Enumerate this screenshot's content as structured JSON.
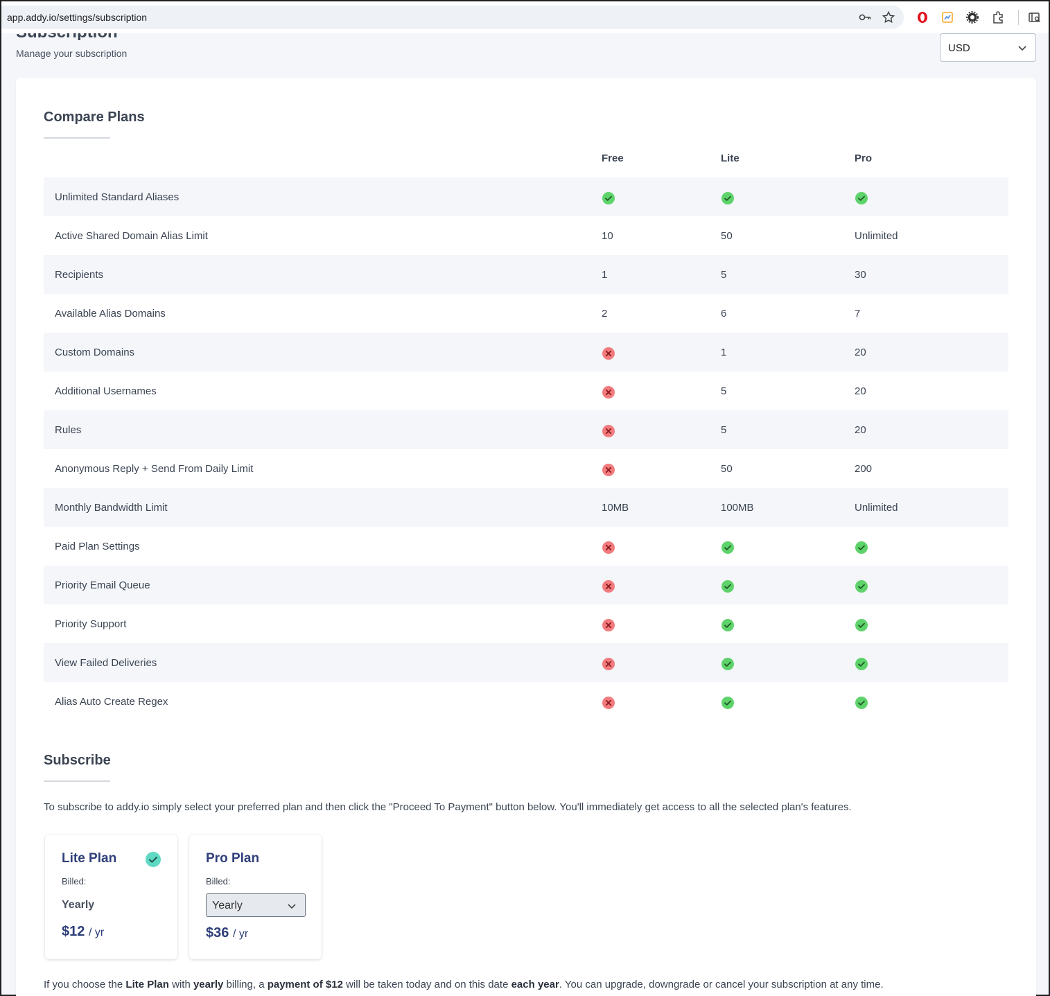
{
  "browser": {
    "url": "app.addy.io/settings/subscription",
    "icons": [
      "key-icon",
      "star-icon",
      "opera-icon",
      "extension-color-icon",
      "gear-icon",
      "puzzle-icon",
      "sidebar-search-icon"
    ]
  },
  "header": {
    "title": "Subscription",
    "subtitle": "Manage your subscription",
    "currency": "USD"
  },
  "compare": {
    "title": "Compare Plans",
    "plans": [
      "Free",
      "Lite",
      "Pro"
    ],
    "rows": [
      {
        "feature": "Unlimited Standard Aliases",
        "free": "check",
        "lite": "check",
        "pro": "check"
      },
      {
        "feature": "Active Shared Domain Alias Limit",
        "free": "10",
        "lite": "50",
        "pro": "Unlimited"
      },
      {
        "feature": "Recipients",
        "free": "1",
        "lite": "5",
        "pro": "30"
      },
      {
        "feature": "Available Alias Domains",
        "free": "2",
        "lite": "6",
        "pro": "7"
      },
      {
        "feature": "Custom Domains",
        "free": "cross",
        "lite": "1",
        "pro": "20"
      },
      {
        "feature": "Additional Usernames",
        "free": "cross",
        "lite": "5",
        "pro": "20"
      },
      {
        "feature": "Rules",
        "free": "cross",
        "lite": "5",
        "pro": "20"
      },
      {
        "feature": "Anonymous Reply + Send From Daily Limit",
        "free": "cross",
        "lite": "50",
        "pro": "200"
      },
      {
        "feature": "Monthly Bandwidth Limit",
        "free": "10MB",
        "lite": "100MB",
        "pro": "Unlimited"
      },
      {
        "feature": "Paid Plan Settings",
        "free": "cross",
        "lite": "check",
        "pro": "check"
      },
      {
        "feature": "Priority Email Queue",
        "free": "cross",
        "lite": "check",
        "pro": "check"
      },
      {
        "feature": "Priority Support",
        "free": "cross",
        "lite": "check",
        "pro": "check"
      },
      {
        "feature": "View Failed Deliveries",
        "free": "cross",
        "lite": "check",
        "pro": "check"
      },
      {
        "feature": "Alias Auto Create Regex",
        "free": "cross",
        "lite": "check",
        "pro": "check"
      }
    ]
  },
  "subscribe": {
    "title": "Subscribe",
    "intro": "To subscribe to addy.io simply select your preferred plan and then click the \"Proceed To Payment\" button below. You'll immediately get access to all the selected plan's features.",
    "lite": {
      "name": "Lite Plan",
      "billed_label": "Billed:",
      "billing": "Yearly",
      "price": "$12",
      "per": "/ yr",
      "selected": true
    },
    "pro": {
      "name": "Pro Plan",
      "billed_label": "Billed:",
      "billing": "Yearly",
      "price": "$36",
      "per": "/ yr",
      "selected": false
    },
    "summary": {
      "p1": "If you choose the ",
      "plan": "Lite Plan",
      "p2": " with ",
      "cycle": "yearly",
      "p3": " billing, a ",
      "payment": "payment of $12",
      "p4": " will be taken today and on this date ",
      "each": "each year",
      "p5": ". You can upgrade, downgrade or cancel your subscription at any time."
    }
  },
  "colors": {
    "check": "#5fd36b",
    "cross": "#f27b7e",
    "selected": "#5fd9c3",
    "plan_title": "#2f3f7a"
  }
}
